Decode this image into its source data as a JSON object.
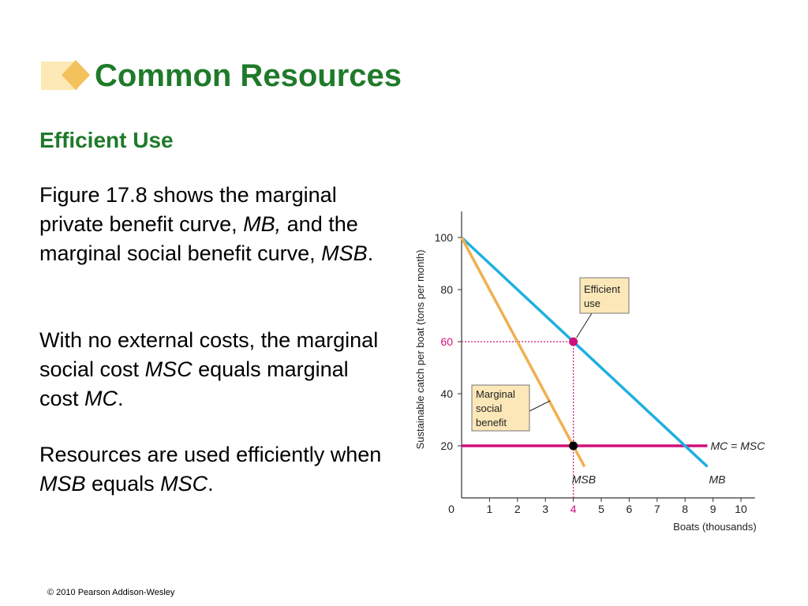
{
  "slide": {
    "title": "Common Resources",
    "subtitle": "Efficient Use",
    "para1": {
      "t1": "Figure 17.8 shows the marginal private benefit curve, ",
      "i1": "MB,",
      "t2": " and the marginal social benefit curve, ",
      "i2": "MSB",
      "t3": "."
    },
    "para2": {
      "t1": "With no external costs, the marginal social cost ",
      "i1": "MSC",
      "t2": " equals marginal cost ",
      "i2": "MC",
      "t3": "."
    },
    "para3": {
      "t1": "Resources are used efficiently when ",
      "i1": "MSB",
      "t2": " equals ",
      "i2": "MSC",
      "t3": "."
    },
    "copyright": "© 2010 Pearson Addison-Wesley"
  },
  "colors": {
    "title_green": "#1f7a2a",
    "mb_blue": "#1fb0e0",
    "msb_orange": "#f0b050",
    "mc_magenta": "#d0107a",
    "callout_fill": "#fbe7b8"
  },
  "chart_data": {
    "type": "line",
    "xlabel": "Boats (thousands)",
    "ylabel": "Sustainable catch per boat (tons per month)",
    "xlim": [
      0,
      10.5
    ],
    "ylim": [
      0,
      110
    ],
    "x_ticks": [
      1,
      2,
      3,
      4,
      5,
      6,
      7,
      8,
      9,
      10
    ],
    "y_ticks": [
      20,
      40,
      60,
      80,
      100
    ],
    "origin_label": "0",
    "highlight_x": 4,
    "highlight_y": 60,
    "series": [
      {
        "name": "MB",
        "points": [
          [
            0,
            100
          ],
          [
            8.8,
            12
          ]
        ]
      },
      {
        "name": "MSB",
        "points": [
          [
            0,
            100
          ],
          [
            4.4,
            12
          ]
        ]
      },
      {
        "name": "MC = MSC",
        "points": [
          [
            0,
            20
          ],
          [
            8.8,
            20
          ]
        ]
      }
    ],
    "points": [
      {
        "x": 4,
        "y": 60
      },
      {
        "x": 4,
        "y": 20
      }
    ],
    "annotations": {
      "efficient": [
        "Efficient",
        "use"
      ],
      "marginal": [
        "Marginal",
        "social",
        "benefit"
      ]
    }
  }
}
